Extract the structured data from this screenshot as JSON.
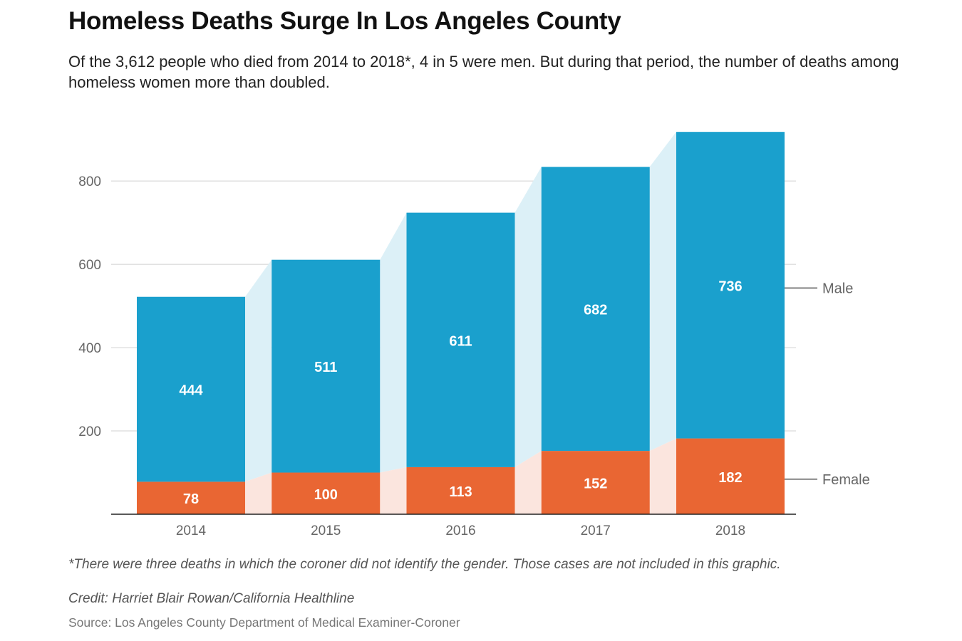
{
  "title": "Homeless Deaths Surge In Los Angeles County",
  "subtitle": "Of the 3,612 people who died from 2014 to 2018*, 4 in 5 were men. But during that period, the number of deaths among homeless women more than doubled.",
  "footnote": "*There were three deaths in which the coroner did not identify the gender. Those cases are not included in this graphic.",
  "credit": "Credit: Harriet Blair Rowan/California Healthline",
  "source": "Source: Los Angeles County Department of Medical Examiner-Coroner",
  "colors": {
    "male": "#1aa0cd",
    "female": "#e96633",
    "male_band": "#dcf0f7",
    "female_band": "#fbe5de",
    "grid": "#d0d0d0",
    "axis": "#222222",
    "tick_text": "#666666"
  },
  "chart_data": {
    "type": "bar",
    "stacked": true,
    "categories": [
      "2014",
      "2015",
      "2016",
      "2017",
      "2018"
    ],
    "series": [
      {
        "name": "Female",
        "values": [
          78,
          100,
          113,
          152,
          182
        ]
      },
      {
        "name": "Male",
        "values": [
          444,
          511,
          611,
          682,
          736
        ]
      }
    ],
    "ylim": [
      0,
      920
    ],
    "yticks": [
      200,
      400,
      600,
      800
    ],
    "legend": [
      "Male",
      "Female"
    ],
    "legend_position": "right",
    "xlabel": "",
    "ylabel": "",
    "grid": true
  }
}
